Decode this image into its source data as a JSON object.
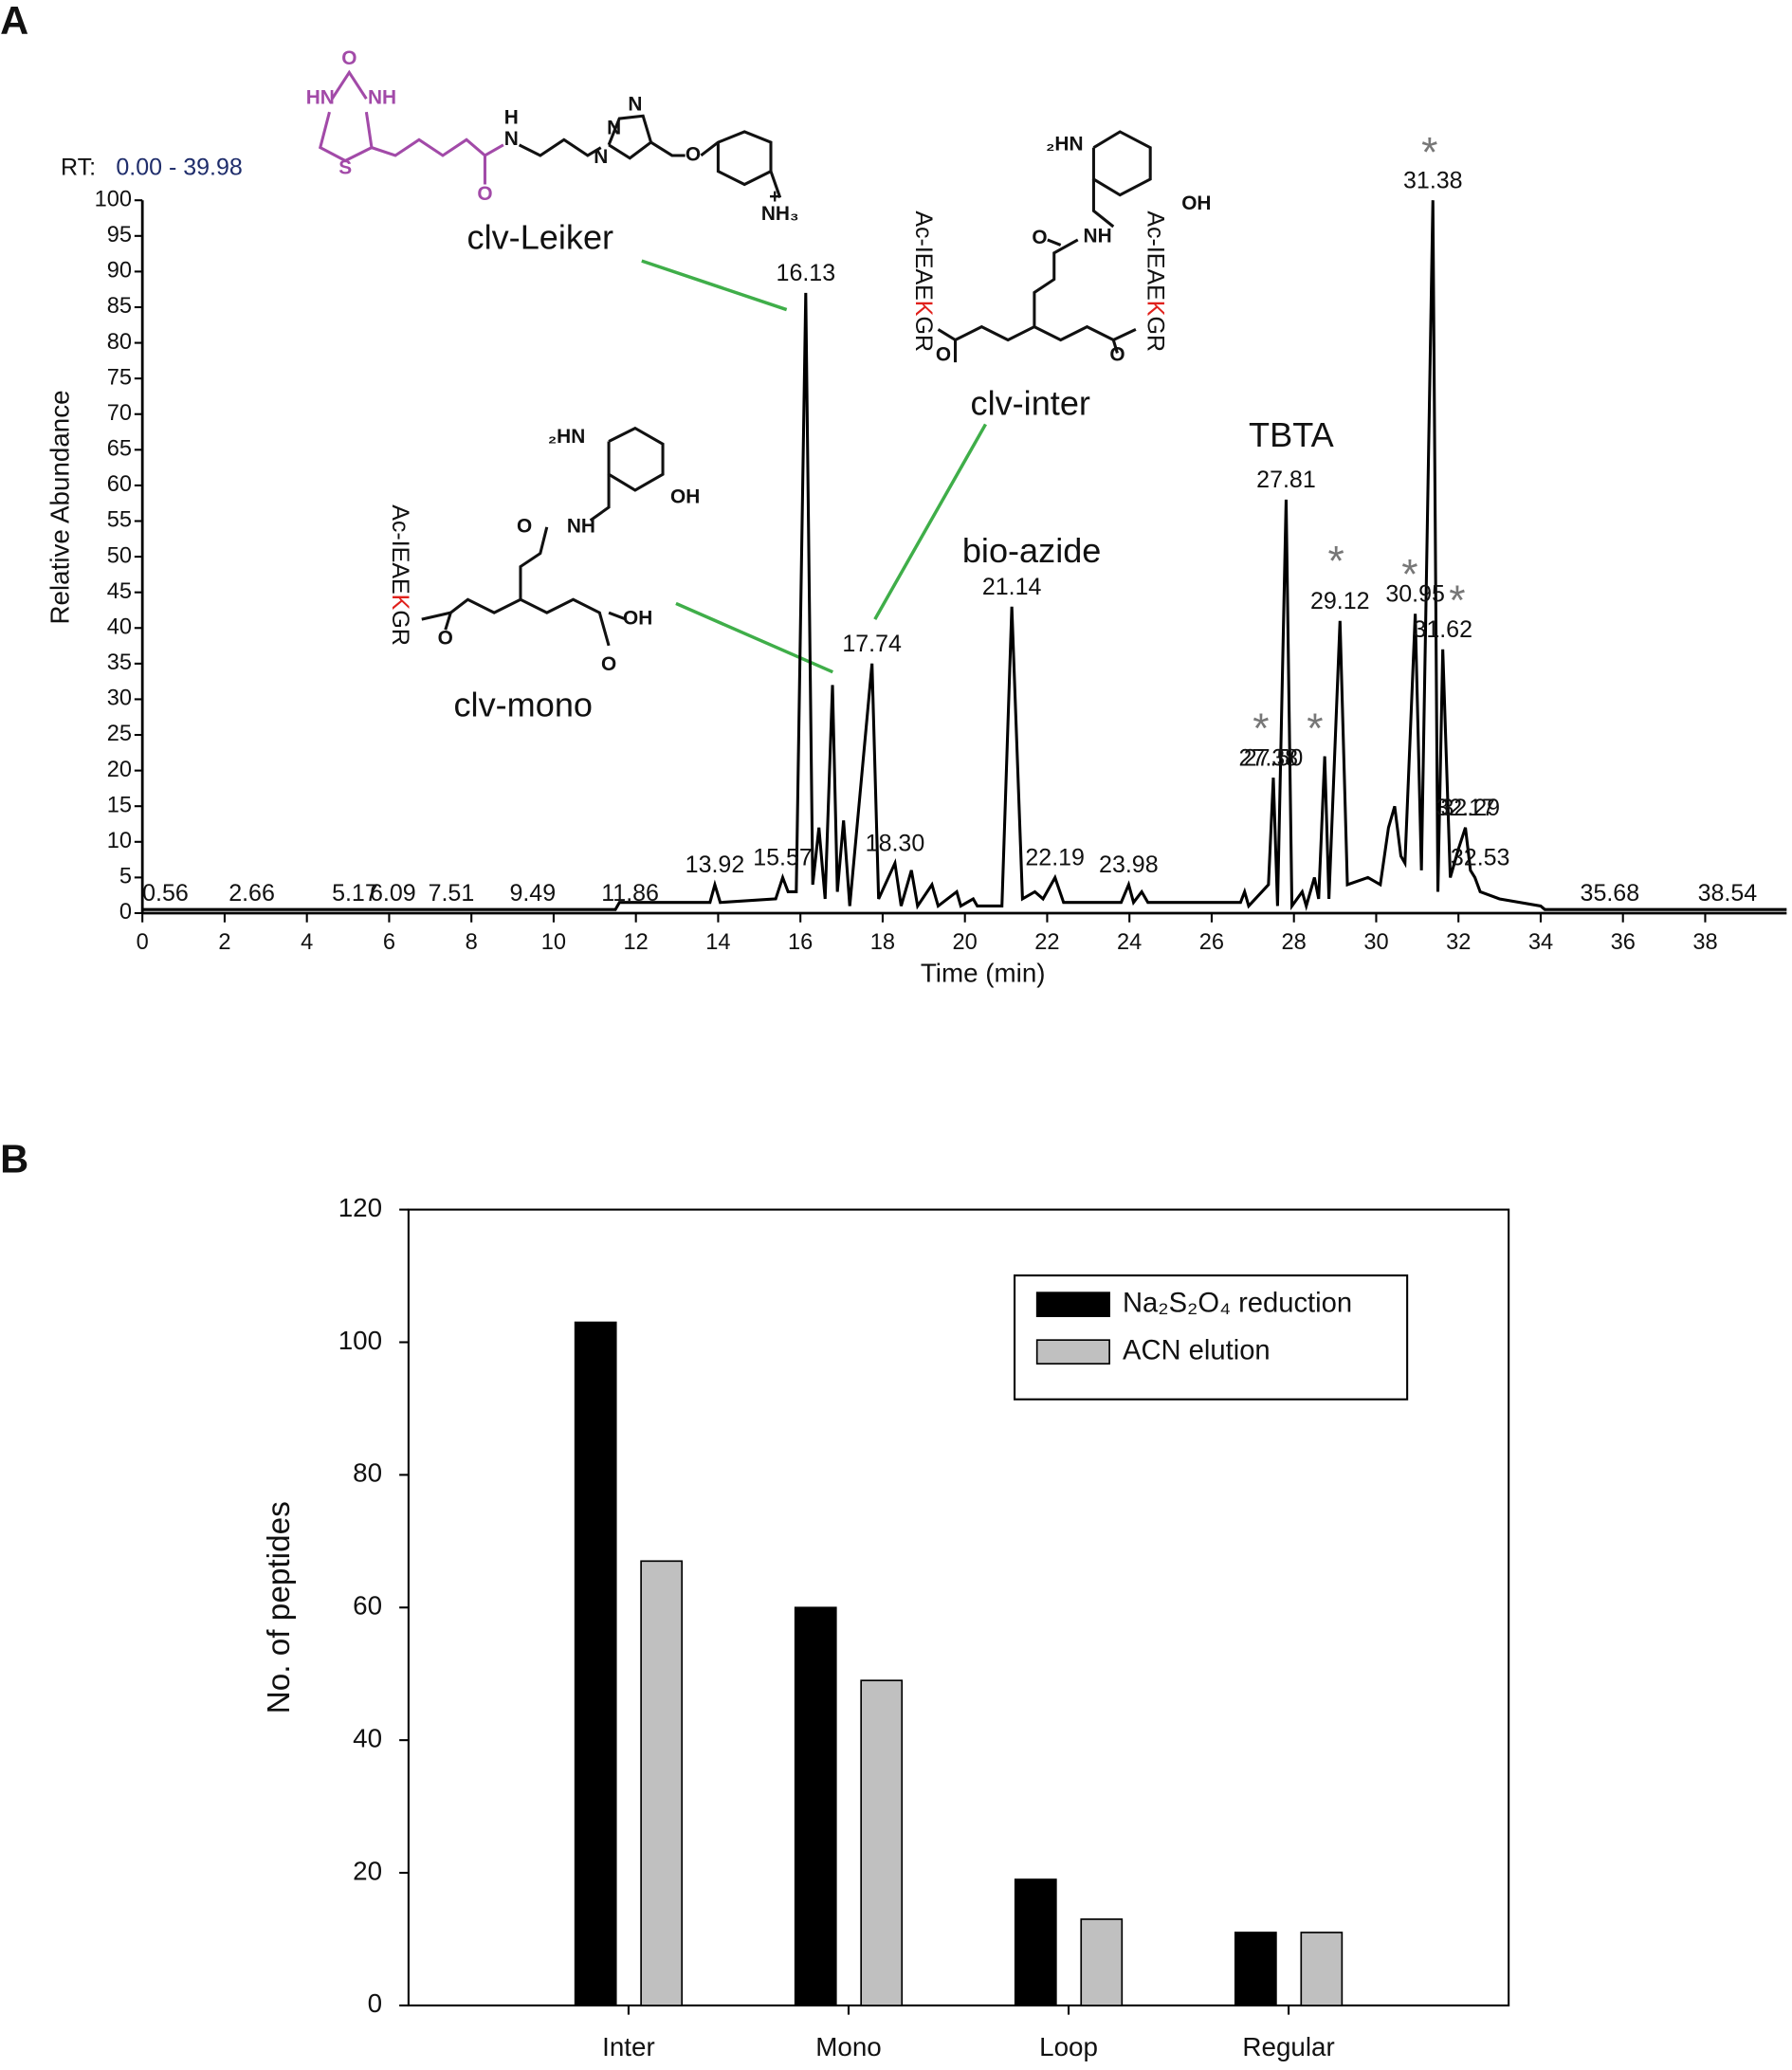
{
  "panel_labels": [
    "A",
    "B"
  ],
  "chart_data": [
    {
      "type": "line",
      "range_label": "RT:",
      "range_value": "0.00 - 39.98",
      "xlabel": "Time (min)",
      "ylabel": "Relative Abundance",
      "color": "#000000",
      "xlim": [
        0,
        39.98
      ],
      "ylim": [
        0,
        100
      ],
      "xticks": [
        0,
        2,
        4,
        6,
        8,
        10,
        12,
        14,
        16,
        18,
        20,
        22,
        24,
        26,
        28,
        30,
        32,
        34,
        36,
        38
      ],
      "yticks": [
        0,
        5,
        10,
        15,
        20,
        25,
        30,
        35,
        40,
        45,
        50,
        55,
        60,
        65,
        70,
        75,
        80,
        85,
        90,
        95,
        100
      ],
      "x": [
        0,
        11.5,
        11.6,
        13.8,
        13.92,
        14.05,
        15.4,
        15.57,
        15.7,
        15.9,
        16.13,
        16.3,
        16.45,
        16.6,
        16.78,
        16.9,
        17.05,
        17.2,
        17.74,
        17.9,
        18.3,
        18.45,
        18.7,
        18.85,
        19.2,
        19.35,
        19.8,
        19.9,
        20.2,
        20.3,
        20.9,
        21.14,
        21.4,
        21.7,
        21.9,
        22.19,
        22.4,
        23.8,
        23.98,
        24.1,
        24.3,
        24.45,
        26.7,
        26.8,
        26.9,
        27.38,
        27.5,
        27.6,
        27.81,
        27.95,
        28.2,
        28.3,
        28.5,
        28.6,
        28.75,
        28.85,
        29.12,
        29.3,
        29.8,
        30.1,
        30.3,
        30.45,
        30.6,
        30.7,
        30.95,
        31.1,
        31.38,
        31.5,
        31.62,
        31.8,
        32.0,
        32.17,
        32.29,
        32.4,
        32.53,
        33,
        34,
        34.1,
        39.98
      ],
      "values": [
        0.5,
        0.5,
        1.5,
        1.5,
        4,
        1.5,
        2,
        5,
        3,
        3,
        87,
        4,
        12,
        2,
        32,
        3,
        13,
        1,
        35,
        2,
        7,
        1,
        6,
        1,
        4,
        1,
        3,
        1,
        2,
        1,
        1,
        43,
        2,
        3,
        2,
        5,
        1.5,
        1.5,
        4,
        1.5,
        3,
        1.5,
        1.5,
        3,
        1,
        4,
        19,
        1,
        58,
        1,
        3,
        1,
        5,
        2,
        22,
        2,
        41,
        4,
        5,
        4,
        12,
        15,
        8,
        7,
        42,
        6,
        100,
        3,
        37,
        5,
        9,
        12,
        6,
        5,
        3,
        2,
        1,
        0.5,
        0.5
      ],
      "peak_labels": [
        0.56,
        2.66,
        5.17,
        6.09,
        7.51,
        9.49,
        11.86,
        13.92,
        15.57,
        16.13,
        17.74,
        {
          "value": 18.3,
          "label": "18.30"
        },
        21.14,
        22.19,
        23.98,
        27.38,
        {
          "value": 27.5,
          "label": "27.50"
        },
        27.81,
        29.12,
        30.95,
        31.38,
        31.62,
        32.17,
        32.29,
        32.53,
        35.68,
        38.54
      ],
      "annotations": [
        "clv-Leiker",
        "clv-inter",
        "clv-mono",
        "bio-azide",
        "TBTA",
        "*",
        "*",
        "*",
        "*",
        "*",
        "*"
      ],
      "structure_labels": [
        "O",
        "HN",
        "NH",
        "S",
        "O",
        "N",
        "H",
        "N",
        "N",
        "N",
        "O",
        "NH₃",
        "+",
        "₂HN",
        "OH",
        "O",
        "NH",
        "O",
        "O",
        "₂HN",
        "OH",
        "O",
        "NH",
        "O",
        "O",
        "OH"
      ],
      "peptides": [
        [
          "Ac-IEAE",
          "K",
          "GR"
        ],
        [
          "Ac-IEAE",
          "K",
          "GR"
        ],
        [
          "Ac-IEAE",
          "K",
          "GR"
        ]
      ]
    },
    {
      "type": "bar",
      "ylabel": "No. of peptides",
      "ylim": [
        0,
        120
      ],
      "yticks": [
        0,
        20,
        40,
        60,
        80,
        100,
        120
      ],
      "categories": [
        "Inter",
        "Mono",
        "Loop",
        "Regular"
      ],
      "series": [
        {
          "name": "Na₂S₂O₄ reduction",
          "color": "#000000",
          "values": [
            103,
            60,
            19,
            11
          ]
        },
        {
          "name": "ACN elution",
          "color": "#c0c0c0",
          "values": [
            67,
            49,
            13,
            11
          ]
        }
      ],
      "legend": "upper right"
    }
  ]
}
